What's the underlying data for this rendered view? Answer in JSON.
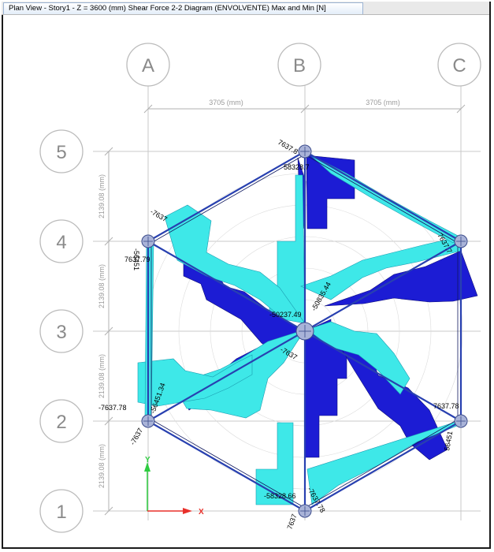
{
  "window": {
    "tab_title": "Plan View - Story1 - Z = 3600 (mm)   Shear Force 2-2 Diagram   (ENVOLVENTE) Max and Min  [N]"
  },
  "grid": {
    "columns": [
      "A",
      "B",
      "C"
    ],
    "rows": [
      "5",
      "4",
      "3",
      "2",
      "1"
    ],
    "x_dimensions": [
      "3705 (mm)",
      "3705 (mm)"
    ],
    "y_dimensions": [
      "2139.08 (mm)",
      "2139.08 (mm)",
      "2139.08 (mm)",
      "2139.08 (mm)"
    ]
  },
  "axes": {
    "x_label": "X",
    "y_label": "Y"
  },
  "colors": {
    "max_fill": "#3ee8e8",
    "min_fill": "#1c1cd4",
    "member": "#2840b0",
    "grid_line": "#c8c8c8",
    "bubble": "#bbbbbb",
    "x_axis": "#e8302a",
    "y_axis": "#2ecc40"
  },
  "values": {
    "top_node": "7637.8",
    "top_node_b": "58328.7",
    "upper_left_a": "-7637",
    "upper_left_b": "7637.79",
    "upper_left_c": "-56451",
    "upper_right": "7637.7",
    "center_a": "-50237.49",
    "center_b": "-50835.44",
    "center_c": "-7637",
    "lower_left_a": "-7637.78",
    "lower_left_b": "-56451.34",
    "lower_left_c": "-7637",
    "lower_right_a": "7637.78",
    "lower_right_b": "56451",
    "bottom_a": "-58328.66",
    "bottom_b": "-7637.78",
    "bottom_c": "7637"
  }
}
